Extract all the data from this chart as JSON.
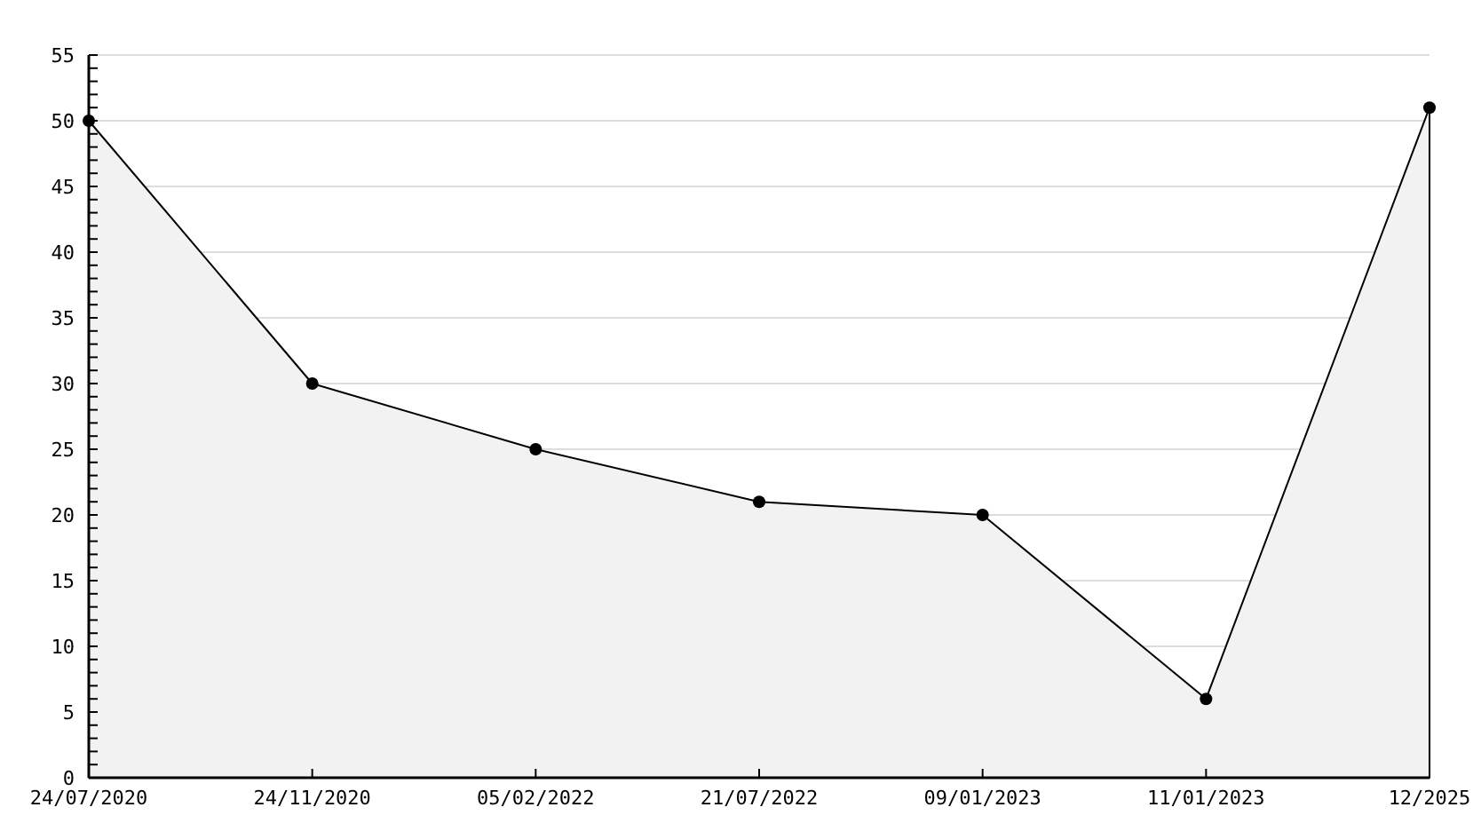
{
  "chart_data": {
    "type": "area",
    "categories": [
      "24/07/2020",
      "24/11/2020",
      "05/02/2022",
      "21/07/2022",
      "09/01/2023",
      "11/01/2023",
      "12/2025"
    ],
    "values": [
      50,
      30,
      25,
      21,
      20,
      6,
      51
    ],
    "color": "#f2f2f2",
    "marker": "circle",
    "line_style": "solid",
    "grid": "y",
    "ylim": [
      0,
      55
    ],
    "yticks": [
      0,
      {
        "value": 1,
        "label": null
      },
      {
        "value": 2,
        "label": null
      },
      {
        "value": 3,
        "label": null
      },
      {
        "value": 4,
        "label": null
      },
      5,
      {
        "value": 6,
        "label": null
      },
      {
        "value": 7,
        "label": null
      },
      {
        "value": 8,
        "label": null
      },
      {
        "value": 9,
        "label": null
      },
      10,
      {
        "value": 11,
        "label": null
      },
      {
        "value": 12,
        "label": null
      },
      {
        "value": 13,
        "label": null
      },
      {
        "value": 14,
        "label": null
      },
      15,
      {
        "value": 16,
        "label": null
      },
      {
        "value": 17,
        "label": null
      },
      {
        "value": 18,
        "label": null
      },
      {
        "value": 19,
        "label": null
      },
      20,
      {
        "value": 21,
        "label": null
      },
      {
        "value": 22,
        "label": null
      },
      {
        "value": 23,
        "label": null
      },
      {
        "value": 24,
        "label": null
      },
      25,
      {
        "value": 26,
        "label": null
      },
      {
        "value": 27,
        "label": null
      },
      {
        "value": 28,
        "label": null
      },
      {
        "value": 29,
        "label": null
      },
      30,
      {
        "value": 31,
        "label": null
      },
      {
        "value": 32,
        "label": null
      },
      {
        "value": 33,
        "label": null
      },
      {
        "value": 34,
        "label": null
      },
      35,
      {
        "value": 36,
        "label": null
      },
      {
        "value": 37,
        "label": null
      },
      {
        "value": 38,
        "label": null
      },
      {
        "value": 39,
        "label": null
      },
      40,
      {
        "value": 41,
        "label": null
      },
      {
        "value": 42,
        "label": null
      },
      {
        "value": 43,
        "label": null
      },
      {
        "value": 44,
        "label": null
      },
      45,
      {
        "value": 46,
        "label": null
      },
      {
        "value": 47,
        "label": null
      },
      {
        "value": 48,
        "label": null
      },
      {
        "value": 49,
        "label": null
      },
      50,
      {
        "value": 51,
        "label": null
      },
      {
        "value": 52,
        "label": null
      },
      {
        "value": 53,
        "label": null
      },
      {
        "value": 54,
        "label": null
      },
      55
    ]
  }
}
